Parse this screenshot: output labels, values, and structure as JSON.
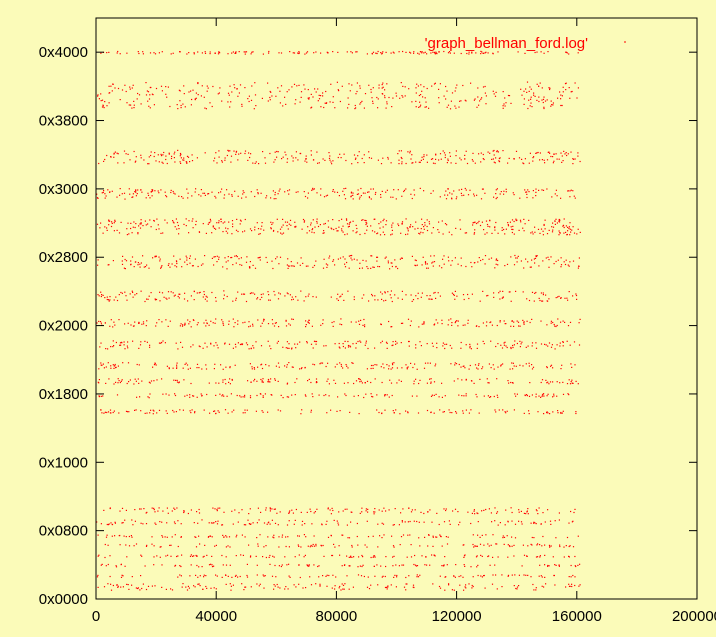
{
  "chart_data": {
    "type": "scatter",
    "xlim": [
      0,
      200000
    ],
    "ylim": [
      0,
      17408
    ],
    "x_ticks": [
      {
        "value": 0,
        "label": "0"
      },
      {
        "value": 40000,
        "label": "40000"
      },
      {
        "value": 80000,
        "label": "80000"
      },
      {
        "value": 120000,
        "label": "120000"
      },
      {
        "value": 160000,
        "label": "160000"
      },
      {
        "value": 200000,
        "label": "200000"
      }
    ],
    "y_ticks": [
      {
        "value": 0,
        "label": "0x0000"
      },
      {
        "value": 2048,
        "label": "0x0800"
      },
      {
        "value": 4096,
        "label": "0x1000"
      },
      {
        "value": 6144,
        "label": "0x1800"
      },
      {
        "value": 8192,
        "label": "0x2000"
      },
      {
        "value": 10240,
        "label": "0x2800"
      },
      {
        "value": 12288,
        "label": "0x3000"
      },
      {
        "value": 14336,
        "label": "0x3800"
      },
      {
        "value": 16384,
        "label": "0x4000"
      }
    ],
    "series": [
      {
        "name": "'graph_bellman_ford.log'",
        "color": "#ff0000"
      }
    ],
    "legend_position": "top-right",
    "grid": false,
    "x_max_data": 161000,
    "address_bands": [
      {
        "center": 16384,
        "half_width": 40,
        "density": 0.6
      },
      {
        "center": 15106,
        "half_width": 400,
        "density": 1.5
      },
      {
        "center": 13260,
        "half_width": 200,
        "density": 1.2
      },
      {
        "center": 12160,
        "half_width": 160,
        "density": 1.0
      },
      {
        "center": 11170,
        "half_width": 240,
        "density": 1.6
      },
      {
        "center": 10110,
        "half_width": 200,
        "density": 1.1
      },
      {
        "center": 9090,
        "half_width": 160,
        "density": 0.9
      },
      {
        "center": 8290,
        "half_width": 120,
        "density": 0.8
      },
      {
        "center": 7630,
        "half_width": 120,
        "density": 0.8
      },
      {
        "center": 7000,
        "half_width": 100,
        "density": 0.7
      },
      {
        "center": 6540,
        "half_width": 80,
        "density": 0.6
      },
      {
        "center": 6110,
        "half_width": 60,
        "density": 0.5
      },
      {
        "center": 5630,
        "half_width": 60,
        "density": 0.5
      },
      {
        "center": 2660,
        "half_width": 90,
        "density": 0.6
      },
      {
        "center": 2310,
        "half_width": 80,
        "density": 0.5
      },
      {
        "center": 1900,
        "half_width": 50,
        "density": 0.4
      },
      {
        "center": 1620,
        "half_width": 50,
        "density": 0.4
      },
      {
        "center": 1300,
        "half_width": 40,
        "density": 0.4
      },
      {
        "center": 1020,
        "half_width": 40,
        "density": 0.4
      },
      {
        "center": 700,
        "half_width": 40,
        "density": 0.4
      },
      {
        "center": 380,
        "half_width": 100,
        "density": 0.6
      }
    ]
  }
}
